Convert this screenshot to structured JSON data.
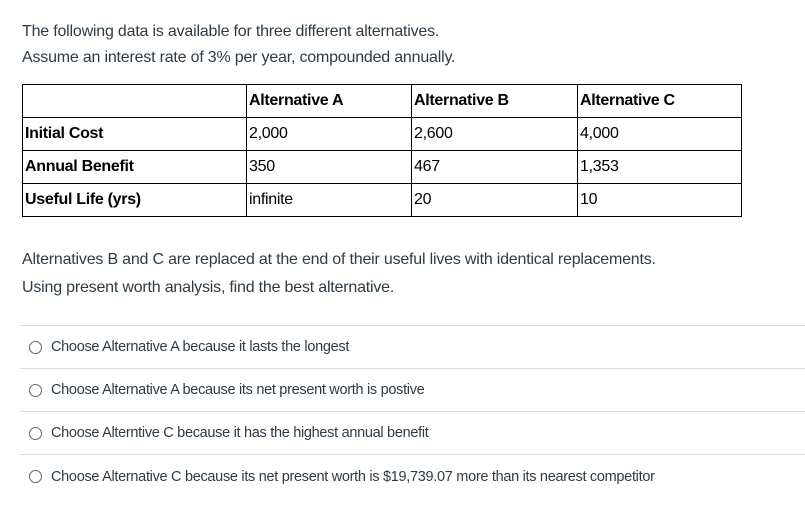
{
  "intro": {
    "line1": "The following data is available for three different alternatives.",
    "line2": "Assume an interest rate of 3% per year, compounded annually."
  },
  "table": {
    "headers": [
      "",
      "Alternative A",
      "Alternative B",
      "Alternative C"
    ],
    "rows": [
      [
        "Initial Cost",
        "2,000",
        "2,600",
        "4,000"
      ],
      [
        "Annual Benefit",
        "350",
        "467",
        "1,353"
      ],
      [
        "Useful Life (yrs)",
        "infinite",
        "20",
        "10"
      ]
    ]
  },
  "prompt": {
    "line1": "Alternatives B and C are replaced at the end of their useful lives with identical replacements.",
    "line2": "Using present worth analysis, find the best alternative."
  },
  "options": [
    {
      "label": "Choose Alternative A because it lasts the longest",
      "selected": false
    },
    {
      "label": "Choose Alternative A because its net present worth is postive",
      "selected": false
    },
    {
      "label": "Choose Alterntive C because it has the highest annual benefit",
      "selected": false
    },
    {
      "label": "Choose Alternative C because its net present worth is $19,739.07 more than its nearest competitor",
      "selected": false
    }
  ]
}
